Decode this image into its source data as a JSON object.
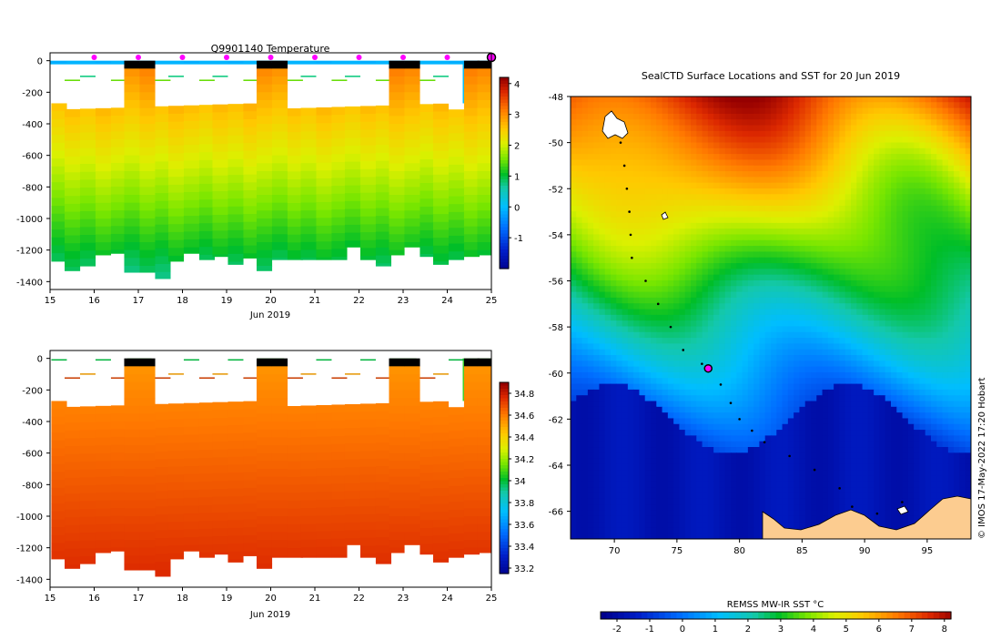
{
  "page": {
    "credit": "© IMOS 17-May-2022 17:20 Hobart"
  },
  "chart_data": [
    {
      "type": "heatmap",
      "name": "temperature-section",
      "title": "Q9901140  Temperature",
      "xlabel": "Jun 2019",
      "ylabel": "",
      "xlim": [
        15,
        25
      ],
      "ylim": [
        -1450,
        50
      ],
      "x_ticks": [
        "15",
        "16",
        "17",
        "18",
        "19",
        "20",
        "21",
        "22",
        "23",
        "24",
        "25"
      ],
      "y_ticks": [
        "0",
        "-200",
        "-400",
        "-600",
        "-800",
        "-1000",
        "-1200",
        "-1400"
      ],
      "colorbar": {
        "min": -2,
        "max": 4.2,
        "ticks": [
          "4",
          "3",
          "2",
          "1",
          "0",
          "-1"
        ],
        "tick_values": [
          4,
          3,
          2,
          1,
          0,
          -1
        ]
      },
      "profile_dates": [
        15.2,
        15.5,
        15.85,
        16.2,
        16.55,
        16.85,
        17.2,
        17.55,
        17.85,
        18.2,
        18.55,
        18.85,
        19.2,
        19.55,
        19.85,
        20.2,
        20.55,
        20.85,
        21.2,
        21.55,
        21.85,
        22.2,
        22.55,
        22.85,
        23.2,
        23.55,
        23.85,
        24.2,
        24.55,
        24.85
      ],
      "profile_max_depth": [
        1270,
        1330,
        1300,
        1230,
        1220,
        1340,
        1340,
        1380,
        1270,
        1220,
        1260,
        1240,
        1290,
        1250,
        1330,
        1260,
        1260,
        1260,
        1260,
        1260,
        1180,
        1260,
        1300,
        1230,
        1180,
        1240,
        1290,
        1260,
        1240,
        1230
      ],
      "gap_windows": [
        [
          16.75,
          17.3
        ],
        [
          19.7,
          20.3
        ],
        [
          22.7,
          23.3
        ],
        [
          24.35,
          25
        ]
      ],
      "surface_markers": [
        16,
        17,
        18,
        19,
        20,
        21,
        22,
        23,
        24
      ],
      "end_marker": 25,
      "values_note": "Water temperature ~2.5 °C near 300 m decreasing to ~0.8 °C near 1300 m"
    },
    {
      "type": "heatmap",
      "name": "salinity-section",
      "title": "",
      "xlabel": "Jun 2019",
      "xlim": [
        15,
        25
      ],
      "ylim": [
        -1450,
        50
      ],
      "x_ticks": [
        "15",
        "16",
        "17",
        "18",
        "19",
        "20",
        "21",
        "22",
        "23",
        "24",
        "25"
      ],
      "y_ticks": [
        "0",
        "-200",
        "-400",
        "-600",
        "-800",
        "-1000",
        "-1200",
        "-1400"
      ],
      "colorbar": {
        "min": 33.15,
        "max": 34.9,
        "ticks": [
          "34.8",
          "34.6",
          "34.4",
          "34.2",
          "34",
          "33.8",
          "33.6",
          "33.4",
          "33.2"
        ],
        "tick_values": [
          34.8,
          34.6,
          34.4,
          34.2,
          34.0,
          33.8,
          33.6,
          33.4,
          33.2
        ]
      },
      "values_note": "Salinity ~34.6 near 300 m increasing to ~34.75 at depth"
    },
    {
      "type": "heatmap",
      "name": "sst-map",
      "title": "SealCTD Surface Locations and SST for 20 Jun 2019",
      "xlim": [
        66.5,
        98.5
      ],
      "ylim": [
        -67.2,
        -48
      ],
      "x_ticks": [
        "70",
        "75",
        "80",
        "85",
        "90",
        "95"
      ],
      "x_tick_values": [
        70,
        75,
        80,
        85,
        90,
        95
      ],
      "y_ticks": [
        "-48",
        "-50",
        "-52",
        "-54",
        "-56",
        "-58",
        "-60",
        "-62",
        "-64",
        "-66"
      ],
      "y_tick_values": [
        -48,
        -50,
        -52,
        -54,
        -56,
        -58,
        -60,
        -62,
        -64,
        -66
      ],
      "colorbar": {
        "label": "REMSS MW-IR SST °C",
        "min": -2.5,
        "max": 8.2,
        "ticks": [
          "-2",
          "-1",
          "0",
          "1",
          "2",
          "3",
          "4",
          "5",
          "6",
          "7",
          "8"
        ],
        "tick_values": [
          -2,
          -1,
          0,
          1,
          2,
          3,
          4,
          5,
          6,
          7,
          8
        ]
      },
      "current_position": {
        "lon": 77.5,
        "lat": -59.8
      },
      "track": [
        [
          70.5,
          -50
        ],
        [
          70.8,
          -51
        ],
        [
          71,
          -52
        ],
        [
          71.2,
          -53
        ],
        [
          71.3,
          -54
        ],
        [
          71.4,
          -55
        ],
        [
          72.5,
          -56
        ],
        [
          73.5,
          -57
        ],
        [
          74.5,
          -58
        ],
        [
          75.5,
          -59
        ],
        [
          77.0,
          -59.6
        ],
        [
          77.5,
          -59.8
        ],
        [
          78.5,
          -60.5
        ],
        [
          79.3,
          -61.3
        ],
        [
          80,
          -62
        ],
        [
          81,
          -62.5
        ],
        [
          82,
          -63
        ],
        [
          84,
          -63.6
        ],
        [
          86,
          -64.2
        ],
        [
          88,
          -65
        ],
        [
          89,
          -65.8
        ],
        [
          91,
          -66.1
        ],
        [
          93,
          -65.6
        ]
      ]
    }
  ]
}
